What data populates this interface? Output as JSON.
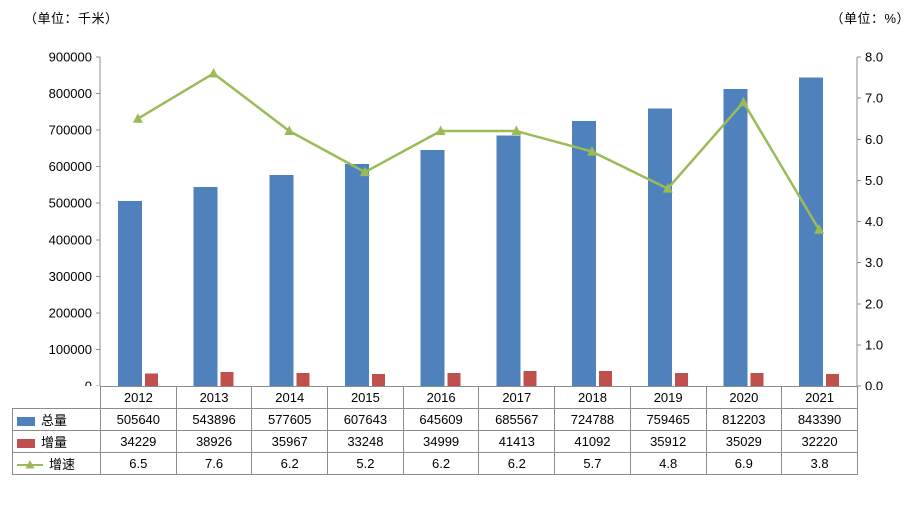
{
  "chart_data": {
    "type": "combo",
    "title": "",
    "categories": [
      "2012",
      "2013",
      "2014",
      "2015",
      "2016",
      "2017",
      "2018",
      "2019",
      "2020",
      "2021"
    ],
    "series": [
      {
        "id": "total",
        "name": "总量",
        "type": "bar",
        "color": "#4F81BD",
        "axis": "left",
        "decimals": 0,
        "values": [
          505640,
          543896,
          577605,
          607643,
          645609,
          685567,
          724788,
          759465,
          812203,
          843390
        ]
      },
      {
        "id": "increment",
        "name": "增量",
        "type": "bar",
        "color": "#C0504D",
        "axis": "left",
        "decimals": 0,
        "values": [
          34229,
          38926,
          35967,
          33248,
          34999,
          41413,
          41092,
          35912,
          35029,
          32220
        ]
      },
      {
        "id": "growth-rate",
        "name": "增速",
        "type": "line",
        "color": "#9BBB59",
        "axis": "right",
        "decimals": 1,
        "values": [
          6.5,
          7.6,
          6.2,
          5.2,
          6.2,
          6.2,
          5.7,
          4.8,
          6.9,
          3.8
        ]
      }
    ],
    "left_axis": {
      "min": 0,
      "max": 900000,
      "step": 100000,
      "decimals": 0,
      "unit_label": "（单位：千米）"
    },
    "right_axis": {
      "min": 0,
      "max": 8,
      "step": 1,
      "decimals": 1,
      "unit_label": "（单位：%）"
    },
    "legend_position": "table-left",
    "grid": false
  }
}
